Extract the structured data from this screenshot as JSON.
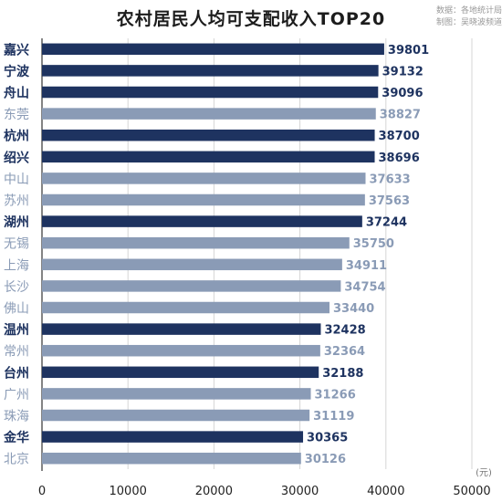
{
  "title": "农村居民人均可支配收入TOP20",
  "source": {
    "line1": "数据：各地统计局",
    "line2": "制图：吴晓波频道"
  },
  "colors": {
    "highlight": "#1e3360",
    "normal": "#8a9bb6",
    "label_highlight": "#1e3360",
    "label_normal": "#8a9bb6",
    "grid": "#d5d5d5"
  },
  "chart_data": {
    "type": "bar",
    "orientation": "horizontal",
    "categories": [
      "嘉兴",
      "宁波",
      "舟山",
      "东莞",
      "杭州",
      "绍兴",
      "中山",
      "苏州",
      "湖州",
      "无锡",
      "上海",
      "长沙",
      "佛山",
      "温州",
      "常州",
      "台州",
      "广州",
      "珠海",
      "金华",
      "北京"
    ],
    "values": [
      39801,
      39132,
      39096,
      38827,
      38700,
      38696,
      37633,
      37563,
      37244,
      35750,
      34911,
      34754,
      33440,
      32428,
      32364,
      32188,
      31266,
      31119,
      30365,
      30126
    ],
    "highlighted": [
      true,
      true,
      true,
      false,
      true,
      true,
      false,
      false,
      true,
      false,
      false,
      false,
      false,
      true,
      false,
      true,
      false,
      false,
      true,
      false
    ],
    "xlim": [
      0,
      50000
    ],
    "xticks": [
      0,
      10000,
      20000,
      30000,
      40000,
      50000
    ],
    "unit_label": "(元)",
    "grid": true,
    "data_labels": true
  }
}
